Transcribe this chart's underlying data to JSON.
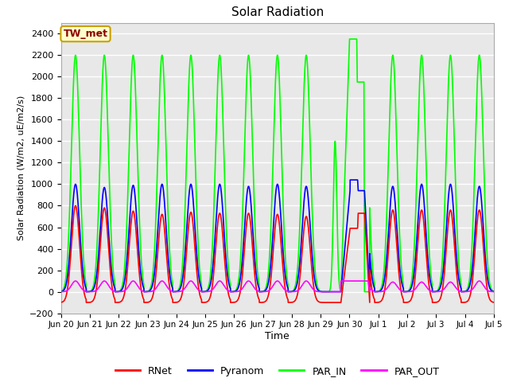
{
  "title": "Solar Radiation",
  "ylabel": "Solar Radiation (W/m2, uE/m2/s)",
  "xlabel": "Time",
  "ylim": [
    -200,
    2500
  ],
  "yticks": [
    -200,
    0,
    200,
    400,
    600,
    800,
    1000,
    1200,
    1400,
    1600,
    1800,
    2000,
    2200,
    2400
  ],
  "background_color": "#ffffff",
  "plot_bg_color": "#e8e8e8",
  "grid_color": "#ffffff",
  "station_label": "TW_met",
  "station_label_color": "#8b0000",
  "station_label_bg": "#ffffcc",
  "station_label_edge": "#c8a000",
  "legend_entries": [
    "RNet",
    "Pyranom",
    "PAR_IN",
    "PAR_OUT"
  ],
  "line_colors": [
    "red",
    "blue",
    "lime",
    "magenta"
  ],
  "xtick_labels": [
    "Jun 20",
    "Jun 21",
    "Jun 22",
    "Jun 23",
    "Jun 24",
    "Jun 25",
    "Jun 26",
    "Jun 27",
    "Jun 28",
    "Jun 29",
    "Jun 30",
    "Jul 1",
    "Jul 2",
    "Jul 3",
    "Jul 4",
    "Jul 5"
  ],
  "n_days": 15,
  "figsize": [
    6.4,
    4.8
  ],
  "dpi": 100
}
